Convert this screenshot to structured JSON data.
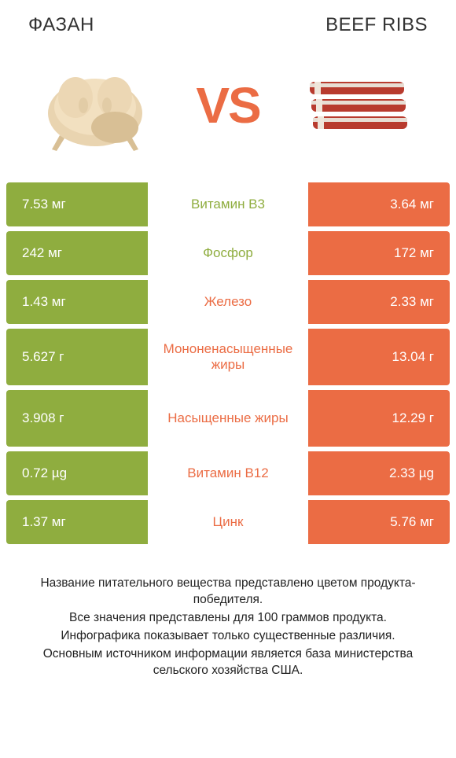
{
  "colors": {
    "left": "#8fad3f",
    "right": "#eb6c44",
    "vs": "#eb6c44",
    "text": "#333333"
  },
  "header": {
    "left_title": "Фазан",
    "right_title": "Beef ribs"
  },
  "vs_label": "VS",
  "rows": [
    {
      "left": "7.53 мг",
      "label": "Витамин B3",
      "right": "3.64 мг",
      "winner": "left",
      "tall": false
    },
    {
      "left": "242 мг",
      "label": "Фосфор",
      "right": "172 мг",
      "winner": "left",
      "tall": false
    },
    {
      "left": "1.43 мг",
      "label": "Железо",
      "right": "2.33 мг",
      "winner": "right",
      "tall": false
    },
    {
      "left": "5.627 г",
      "label": "Мононенасыщенные жиры",
      "right": "13.04 г",
      "winner": "right",
      "tall": true
    },
    {
      "left": "3.908 г",
      "label": "Насыщенные жиры",
      "right": "12.29 г",
      "winner": "right",
      "tall": true
    },
    {
      "left": "0.72 µg",
      "label": "Витамин B12",
      "right": "2.33 µg",
      "winner": "right",
      "tall": false
    },
    {
      "left": "1.37 мг",
      "label": "Цинк",
      "right": "5.76 мг",
      "winner": "right",
      "tall": false
    }
  ],
  "footer": {
    "line1": "Название питательного вещества представлено цветом продукта-победителя.",
    "line2": "Все значения представлены для 100 граммов продукта.",
    "line3": "Инфографика показывает только существенные различия.",
    "line4": "Основным источником информации является база министерства сельского хозяйства США."
  }
}
